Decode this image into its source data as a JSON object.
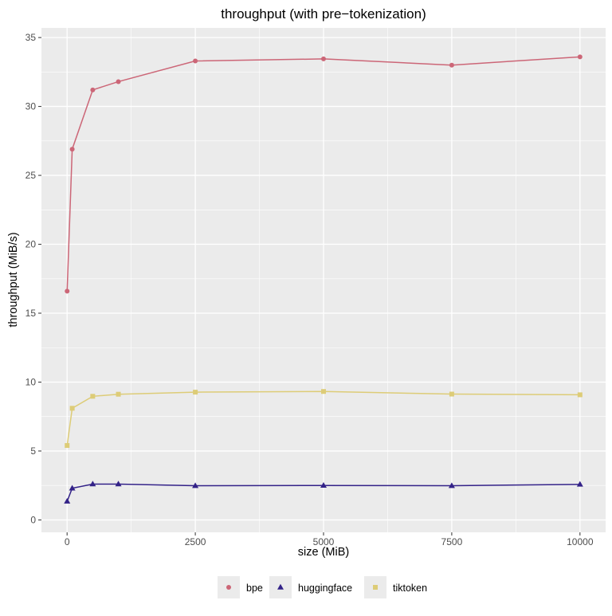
{
  "chart_data": {
    "type": "line",
    "title": "throughput (with pre−tokenization)",
    "xlabel": "size (MiB)",
    "ylabel": "throughput (MiB/s)",
    "xlim": [
      -500,
      10500
    ],
    "ylim": [
      -0.9,
      35.7
    ],
    "xticks": [
      0,
      2500,
      5000,
      7500,
      10000
    ],
    "xtick_labels": [
      "0",
      "2500",
      "5000",
      "7500",
      "10000"
    ],
    "yticks": [
      0,
      5,
      10,
      15,
      20,
      25,
      30,
      35
    ],
    "ytick_labels": [
      "0",
      "5",
      "10",
      "15",
      "20",
      "25",
      "30",
      "35"
    ],
    "grid": true,
    "legend_position": "bottom",
    "x": [
      1,
      100,
      500,
      1000,
      2500,
      5000,
      7500,
      10000
    ],
    "series": [
      {
        "name": "bpe",
        "color": "#CC6677",
        "marker": "circle",
        "values": [
          16.6,
          26.9,
          31.2,
          31.8,
          33.3,
          33.45,
          33.0,
          33.6
        ]
      },
      {
        "name": "huggingface",
        "color": "#332288",
        "marker": "triangle",
        "values": [
          1.35,
          2.3,
          2.6,
          2.6,
          2.48,
          2.5,
          2.48,
          2.58
        ]
      },
      {
        "name": "tiktoken",
        "color": "#DDCC77",
        "marker": "square",
        "values": [
          5.4,
          8.1,
          8.97,
          9.12,
          9.27,
          9.32,
          9.13,
          9.08
        ]
      }
    ]
  }
}
